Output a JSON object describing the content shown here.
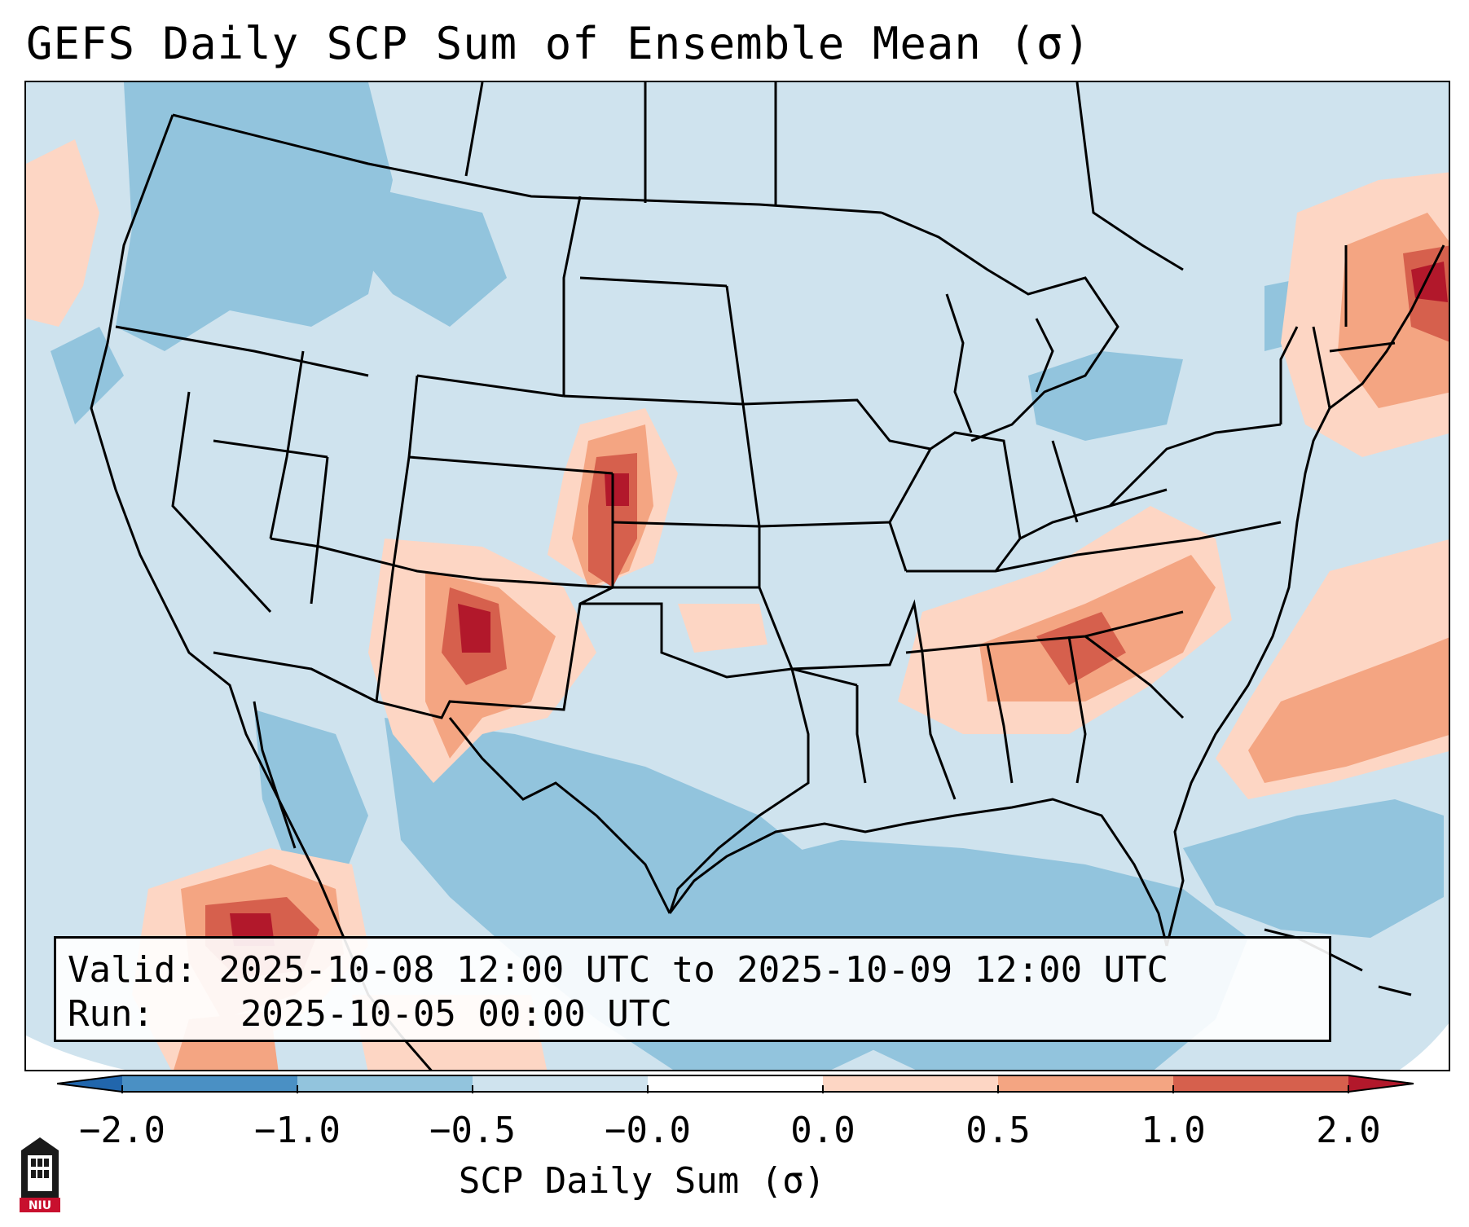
{
  "title": "GEFS Daily SCP Sum of Ensemble Mean (σ)",
  "info": {
    "valid_label": "Valid:",
    "valid_value": "2025-10-08 12:00 UTC to 2025-10-09 12:00 UTC",
    "run_label": "Run:",
    "run_value": "2025-10-05 00:00 UTC"
  },
  "colorbar": {
    "label": "SCP Daily Sum (σ)",
    "ticks": [
      "−2.0",
      "−1.0",
      "−0.5",
      "−0.0",
      "0.0",
      "0.5",
      "1.0",
      "2.0"
    ],
    "colors": [
      "#4a90c4",
      "#92c4dd",
      "#cfe3ee",
      "#ffffff",
      "#fdd6c4",
      "#f4a582",
      "#d6604d",
      "#b2182b"
    ]
  },
  "logo": {
    "text": "NIU",
    "color": "#c8102e"
  },
  "map_colors": {
    "background_neutral": "#cfe3ee",
    "light_blue": "#92c4dd",
    "light_red": "#fdd6c4",
    "mid_red": "#f4a582",
    "dark_red": "#d6604d",
    "deep_red": "#b2182b"
  }
}
